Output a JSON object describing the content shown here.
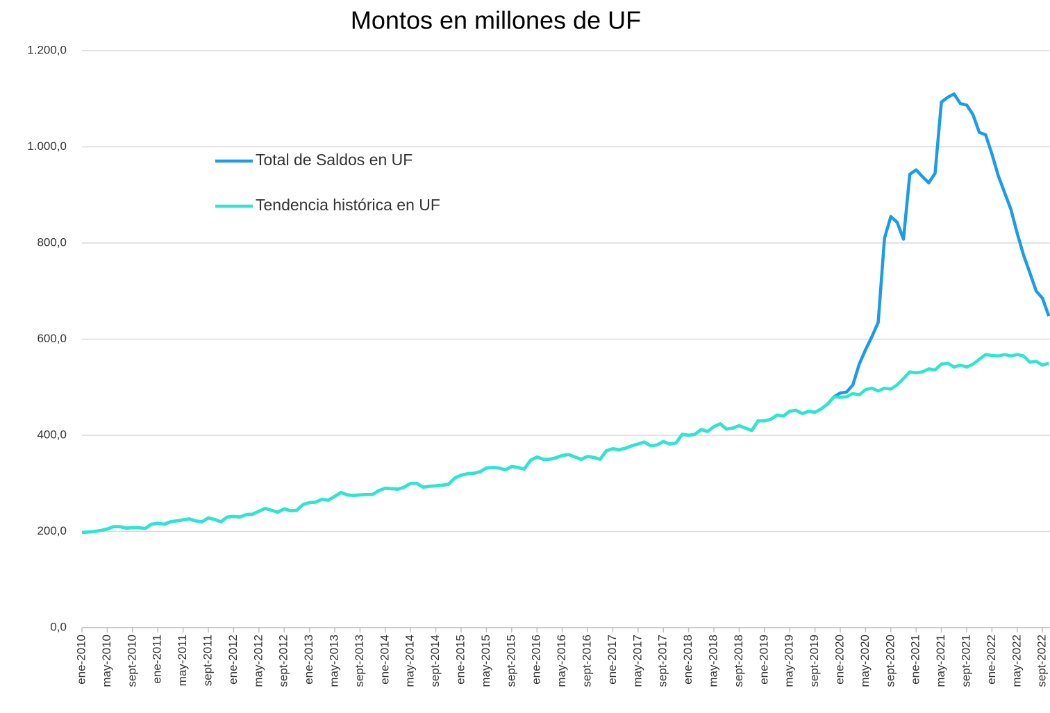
{
  "chart_data": {
    "type": "line",
    "title": "Montos en millones de UF",
    "categories": [
      "ene-2010",
      null,
      null,
      null,
      "may-2010",
      null,
      null,
      null,
      "sept-2010",
      null,
      null,
      null,
      "ene-2011",
      null,
      null,
      null,
      "may-2011",
      null,
      null,
      null,
      "sept-2011",
      null,
      null,
      null,
      "ene-2012",
      null,
      null,
      null,
      "may-2012",
      null,
      null,
      null,
      "sept-2012",
      null,
      null,
      null,
      "ene-2013",
      null,
      null,
      null,
      "may-2013",
      null,
      null,
      null,
      "sept-2013",
      null,
      null,
      null,
      "ene-2014",
      null,
      null,
      null,
      "may-2014",
      null,
      null,
      null,
      "sept-2014",
      null,
      null,
      null,
      "ene-2015",
      null,
      null,
      null,
      "may-2015",
      null,
      null,
      null,
      "sept-2015",
      null,
      null,
      null,
      "ene-2016",
      null,
      null,
      null,
      "may-2016",
      null,
      null,
      null,
      "sept-2016",
      null,
      null,
      null,
      "ene-2017",
      null,
      null,
      null,
      "may-2017",
      null,
      null,
      null,
      "sept-2017",
      null,
      null,
      null,
      "ene-2018",
      null,
      null,
      null,
      "may-2018",
      null,
      null,
      null,
      "sept-2018",
      null,
      null,
      null,
      "ene-2019",
      null,
      null,
      null,
      "may-2019",
      null,
      null,
      null,
      "sept-2019",
      null,
      null,
      null,
      "ene-2020",
      null,
      null,
      null,
      "may-2020",
      null,
      null,
      null,
      "sept-2020",
      null,
      null,
      null,
      "ene-2021",
      null,
      null,
      null,
      "may-2021",
      null,
      null,
      null,
      "sept-2021",
      null,
      null,
      null,
      "ene-2022",
      null,
      null,
      null,
      "may-2022",
      null,
      null,
      null,
      "sept-2022",
      null
    ],
    "series": [
      {
        "name": "Total de Saldos en UF",
        "color": "#1a9ce8",
        "values": [
          198,
          199,
          200,
          202,
          205,
          210,
          210,
          207,
          208,
          208,
          206,
          215,
          217,
          215,
          220,
          222,
          224,
          226,
          222,
          220,
          228,
          225,
          220,
          230,
          231,
          230,
          235,
          236,
          242,
          248,
          244,
          240,
          247,
          243,
          244,
          256,
          260,
          261,
          267,
          265,
          273,
          281,
          276,
          275,
          276,
          277,
          277,
          285,
          290,
          289,
          288,
          292,
          300,
          300,
          292,
          294,
          295,
          296,
          298,
          311,
          317,
          320,
          321,
          324,
          332,
          333,
          332,
          328,
          335,
          333,
          330,
          348,
          355,
          350,
          350,
          353,
          358,
          360,
          355,
          350,
          356,
          354,
          350,
          368,
          372,
          370,
          373,
          378,
          382,
          386,
          378,
          380,
          387,
          382,
          384,
          402,
          400,
          402,
          412,
          408,
          418,
          424,
          413,
          415,
          420,
          415,
          410,
          430,
          430,
          433,
          442,
          440,
          450,
          452,
          445,
          450,
          448,
          455,
          465,
          480,
          488,
          490,
          505,
          548,
          578,
          605,
          635,
          810,
          855,
          843,
          808,
          943,
          952,
          938,
          925,
          945,
          1093,
          1103,
          1110,
          1090,
          1087,
          1067,
          1030,
          1025,
          985,
          940,
          905,
          870,
          820,
          775,
          738,
          700,
          685,
          648
        ]
      },
      {
        "name": "Tendencia histórica en UF",
        "color": "#2ee6cf",
        "values": [
          198,
          199,
          200,
          202,
          205,
          210,
          210,
          207,
          208,
          208,
          206,
          215,
          217,
          215,
          220,
          222,
          224,
          226,
          222,
          220,
          228,
          225,
          220,
          230,
          231,
          230,
          235,
          236,
          242,
          248,
          244,
          240,
          247,
          243,
          244,
          256,
          260,
          261,
          267,
          265,
          273,
          281,
          276,
          275,
          276,
          277,
          277,
          285,
          290,
          289,
          288,
          292,
          300,
          300,
          292,
          294,
          295,
          296,
          298,
          311,
          317,
          320,
          321,
          324,
          332,
          333,
          332,
          328,
          335,
          333,
          330,
          348,
          355,
          350,
          350,
          353,
          358,
          360,
          355,
          350,
          356,
          354,
          350,
          368,
          372,
          370,
          373,
          378,
          382,
          386,
          378,
          380,
          387,
          382,
          384,
          402,
          400,
          402,
          412,
          408,
          418,
          424,
          413,
          415,
          420,
          415,
          410,
          430,
          430,
          433,
          442,
          440,
          450,
          452,
          445,
          450,
          448,
          455,
          465,
          480,
          479,
          480,
          487,
          484,
          495,
          498,
          492,
          498,
          496,
          505,
          518,
          532,
          530,
          532,
          538,
          536,
          548,
          550,
          542,
          546,
          542,
          548,
          558,
          568,
          566,
          565,
          568,
          565,
          568,
          565,
          552,
          554,
          546,
          550
        ]
      }
    ],
    "ylim": [
      0,
      1200
    ],
    "yticks": [
      {
        "value": 0,
        "label": "0,0"
      },
      {
        "value": 200,
        "label": "200,0"
      },
      {
        "value": 400,
        "label": "400,0"
      },
      {
        "value": 600,
        "label": "600,0"
      },
      {
        "value": 800,
        "label": "800,0"
      },
      {
        "value": 1000,
        "label": "1.000,0"
      },
      {
        "value": 1200,
        "label": "1.200,0"
      }
    ],
    "grid": true
  }
}
